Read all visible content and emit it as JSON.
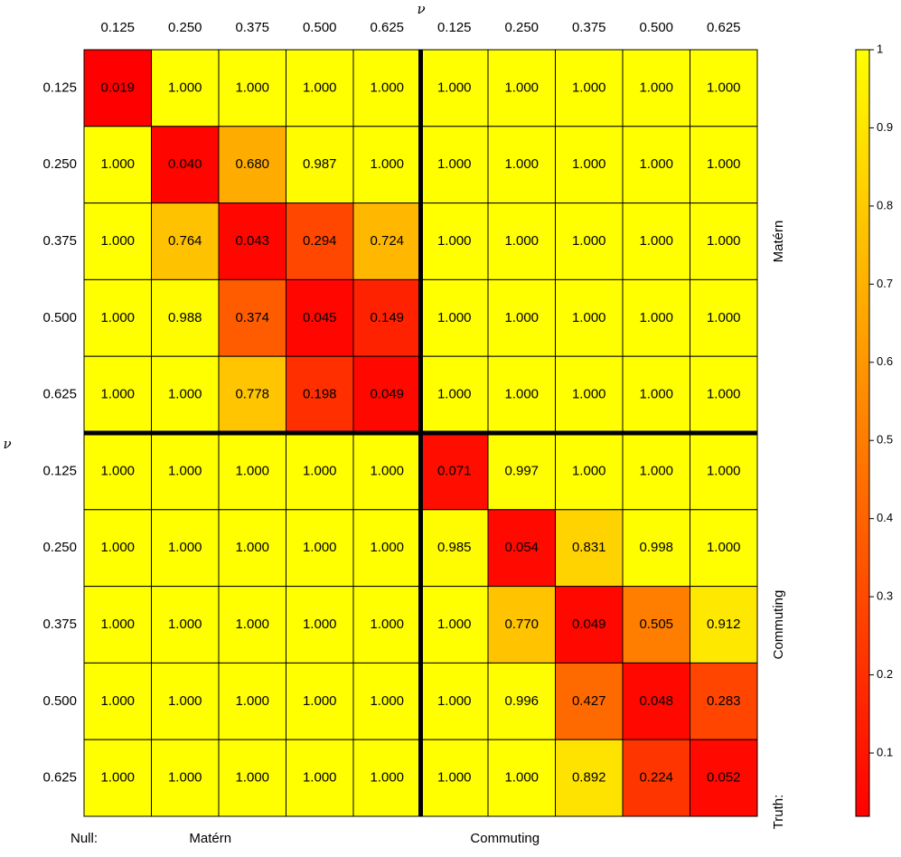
{
  "chart_data": {
    "type": "heatmap",
    "x_label": "ν",
    "y_label": "ν",
    "x_categories": [
      "0.125",
      "0.250",
      "0.375",
      "0.500",
      "0.625",
      "0.125",
      "0.250",
      "0.375",
      "0.500",
      "0.625"
    ],
    "y_categories": [
      "0.125",
      "0.250",
      "0.375",
      "0.500",
      "0.625",
      "0.125",
      "0.250",
      "0.375",
      "0.500",
      "0.625"
    ],
    "col_group_label": "Null:",
    "col_groups": [
      "Matérn",
      "Commuting"
    ],
    "row_group_label": "Truth:",
    "row_groups": [
      "Matérn",
      "Commuting"
    ],
    "values": [
      [
        0.019,
        1,
        1,
        1,
        1,
        1,
        1,
        1,
        1,
        1
      ],
      [
        1,
        0.04,
        0.68,
        0.987,
        1,
        1,
        1,
        1,
        1,
        1
      ],
      [
        1,
        0.764,
        0.043,
        0.294,
        0.724,
        1,
        1,
        1,
        1,
        1
      ],
      [
        1,
        0.988,
        0.374,
        0.045,
        0.149,
        1,
        1,
        1,
        1,
        1
      ],
      [
        1,
        1,
        0.778,
        0.198,
        0.049,
        1,
        1,
        1,
        1,
        1
      ],
      [
        1,
        1,
        1,
        1,
        1,
        0.071,
        0.997,
        1,
        1,
        1
      ],
      [
        1,
        1,
        1,
        1,
        1,
        0.985,
        0.054,
        0.831,
        0.998,
        1
      ],
      [
        1,
        1,
        1,
        1,
        1,
        1,
        0.77,
        0.049,
        0.505,
        0.912
      ],
      [
        1,
        1,
        1,
        1,
        1,
        1,
        0.996,
        0.427,
        0.048,
        0.283
      ],
      [
        1,
        1,
        1,
        1,
        1,
        1,
        1,
        0.892,
        0.224,
        0.052
      ]
    ],
    "value_labels": [
      [
        "0.019",
        "1.000",
        "1.000",
        "1.000",
        "1.000",
        "1.000",
        "1.000",
        "1.000",
        "1.000",
        "1.000"
      ],
      [
        "1.000",
        "0.040",
        "0.680",
        "0.987",
        "1.000",
        "1.000",
        "1.000",
        "1.000",
        "1.000",
        "1.000"
      ],
      [
        "1.000",
        "0.764",
        "0.043",
        "0.294",
        "0.724",
        "1.000",
        "1.000",
        "1.000",
        "1.000",
        "1.000"
      ],
      [
        "1.000",
        "0.988",
        "0.374",
        "0.045",
        "0.149",
        "1.000",
        "1.000",
        "1.000",
        "1.000",
        "1.000"
      ],
      [
        "1.000",
        "1.000",
        "0.778",
        "0.198",
        "0.049",
        "1.000",
        "1.000",
        "1.000",
        "1.000",
        "1.000"
      ],
      [
        "1.000",
        "1.000",
        "1.000",
        "1.000",
        "1.000",
        "0.071",
        "0.997",
        "1.000",
        "1.000",
        "1.000"
      ],
      [
        "1.000",
        "1.000",
        "1.000",
        "1.000",
        "1.000",
        "0.985",
        "0.054",
        "0.831",
        "0.998",
        "1.000"
      ],
      [
        "1.000",
        "1.000",
        "1.000",
        "1.000",
        "1.000",
        "1.000",
        "0.770",
        "0.049",
        "0.505",
        "0.912"
      ],
      [
        "1.000",
        "1.000",
        "1.000",
        "1.000",
        "1.000",
        "1.000",
        "0.996",
        "0.427",
        "0.048",
        "0.283"
      ],
      [
        "1.000",
        "1.000",
        "1.000",
        "1.000",
        "1.000",
        "1.000",
        "1.000",
        "0.892",
        "0.224",
        "0.052"
      ]
    ],
    "colorbar": {
      "lim": [
        0.019,
        1
      ],
      "ticks": [
        0.1,
        0.2,
        0.3,
        0.4,
        0.5,
        0.6,
        0.7,
        0.8,
        0.9,
        1
      ],
      "colors": [
        "#ff0000",
        "#ffff00"
      ]
    }
  }
}
